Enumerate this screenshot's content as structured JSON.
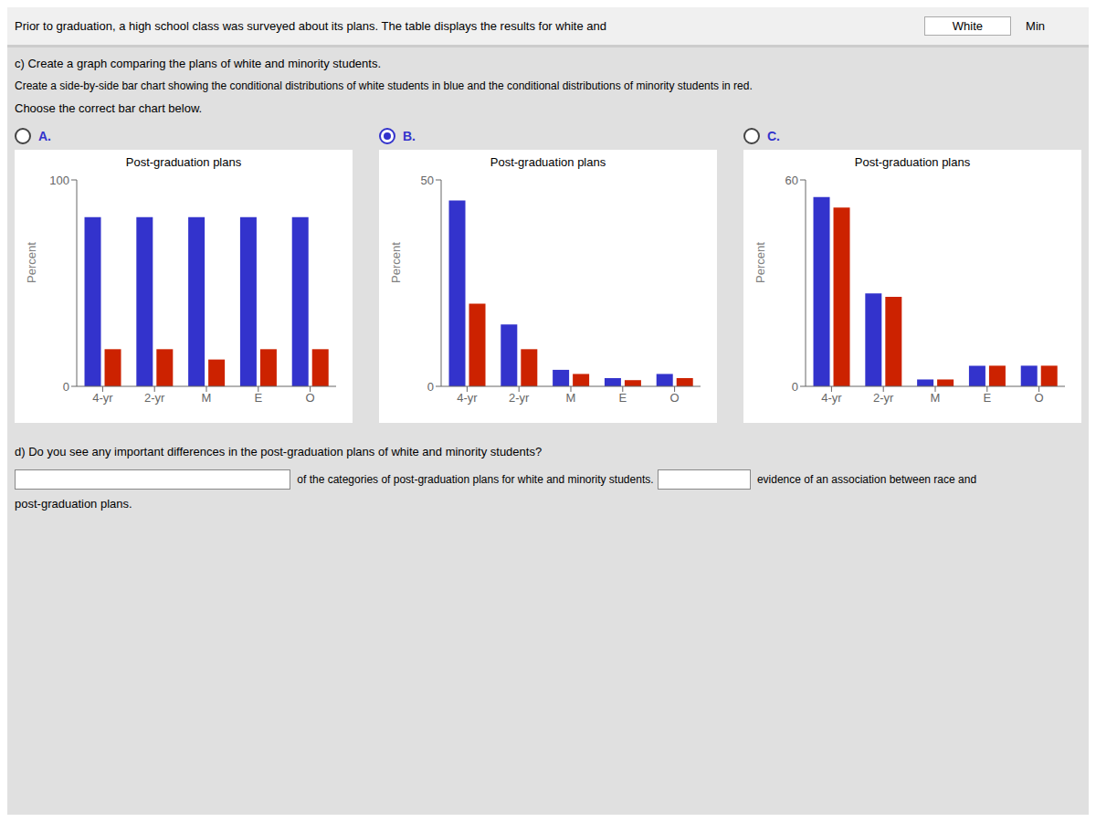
{
  "title": "Prior to graduation, a high school class was surveyed about its plans. The table displays the results for white and",
  "annotations": [
    "White",
    "Min",
    "c) Create a graph comparing the plans of white and minority students.",
    "Create a side-by-side bar chart showing the conditional distributions of white students in blue and the conditional distributions of minority students in red.",
    "Choose the correct bar chart below.",
    "d) Do you see any important differences in the post-graduation plans of white and minority students?",
    " of the categories of post-graduation plans for white and minority students.",
    " evidence of an association between race and",
    "post-graduation plans."
  ],
  "chart_data": [
    {
      "type": "bar",
      "annotations": [
        "A."
      ],
      "title": "Post-graduation plans",
      "y_label": "Percent",
      "categories": [
        "4-yr",
        "2-yr",
        "M",
        "E",
        "O"
      ],
      "series": [
        {
          "color": "#3333cc",
          "values": [
            82,
            82,
            82,
            82,
            82
          ]
        },
        {
          "color": "#cc2200",
          "values": [
            18,
            18,
            13,
            18,
            18
          ]
        }
      ],
      "ylim": [
        0,
        100
      ],
      "yticks": [
        0,
        100
      ],
      "grid": false
    },
    {
      "type": "bar",
      "annotations": [
        "B."
      ],
      "title": "Post-graduation plans",
      "y_label": "Percent",
      "categories": [
        "4-yr",
        "2-yr",
        "M",
        "E",
        "O"
      ],
      "series": [
        {
          "color": "#3333cc",
          "values": [
            45,
            15,
            4,
            2,
            3
          ]
        },
        {
          "color": "#cc2200",
          "values": [
            20,
            9,
            3,
            1.5,
            2
          ]
        }
      ],
      "ylim": [
        0,
        50
      ],
      "yticks": [
        0,
        50
      ],
      "grid": false
    },
    {
      "type": "bar",
      "annotations": [
        "C."
      ],
      "title": "Post-graduation plans",
      "y_label": "Percent",
      "categories": [
        "4-yr",
        "2-yr",
        "M",
        "E",
        "O"
      ],
      "series": [
        {
          "color": "#3333cc",
          "values": [
            55,
            27,
            2,
            6,
            6
          ]
        },
        {
          "color": "#cc2200",
          "values": [
            52,
            26,
            2,
            6,
            6
          ]
        }
      ],
      "ylim": [
        0,
        60
      ],
      "yticks": [
        0,
        60
      ],
      "grid": false
    }
  ]
}
